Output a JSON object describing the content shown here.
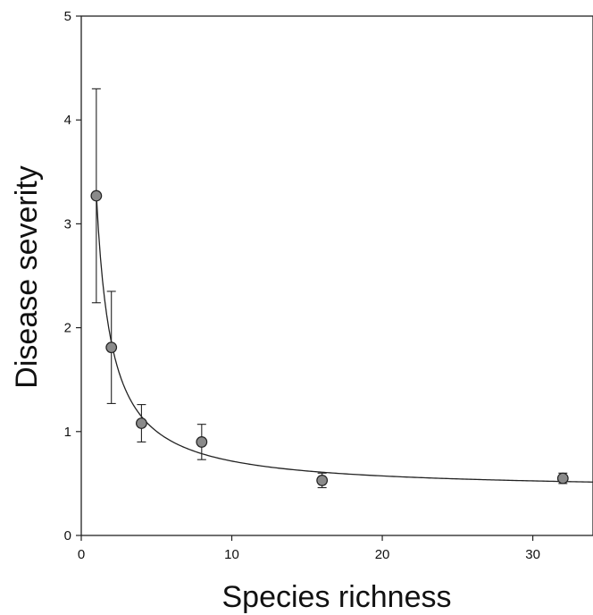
{
  "chart_data": {
    "type": "scatter",
    "title": "",
    "xlabel": "Species richness",
    "ylabel": "Disease severity",
    "xlim": [
      0,
      34
    ],
    "ylim": [
      0,
      5
    ],
    "x_ticks": [
      0,
      10,
      20,
      30
    ],
    "y_ticks": [
      0,
      1,
      2,
      3,
      4,
      5
    ],
    "x_tick_labels": [
      "0",
      "10",
      "20",
      "30"
    ],
    "y_tick_labels": [
      "0",
      "1",
      "2",
      "3",
      "4",
      "5"
    ],
    "grid": false,
    "legend": "none",
    "series": [
      {
        "x": [
          1,
          2,
          4,
          8,
          16,
          32
        ],
        "y": [
          3.27,
          1.81,
          1.08,
          0.9,
          0.53,
          0.55
        ],
        "error": [
          1.03,
          0.54,
          0.18,
          0.17,
          0.07,
          0.05
        ]
      }
    ],
    "fit_curve": {
      "type": "hyperbolic",
      "equation": "y = 0.43 + 2.86 / x",
      "a": 0.43,
      "b": 2.86,
      "x_range": [
        1,
        34
      ]
    },
    "colors": {
      "marker_fill": "#8a8a8a",
      "marker_stroke": "#222222",
      "line": "#222222",
      "axis": "#222222"
    }
  }
}
